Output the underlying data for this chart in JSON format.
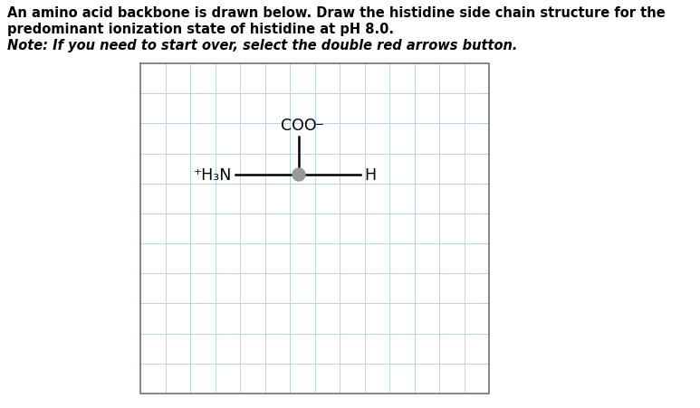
{
  "fig_width": 7.73,
  "fig_height": 4.51,
  "bg_color": "#ffffff",
  "title_line1": "An amino acid backbone is drawn below. Draw the histidine side chain structure for the",
  "title_line2": "predominant ionization state of histidine at pH 8.0.",
  "title_line3": "Note: If you need to start over, select the double red arrows button.",
  "grid_color": "#b8d4e8",
  "grid_cols": 14,
  "grid_rows": 11,
  "bond_color": "#000000",
  "node_color": "#999999",
  "text_color": "#000000",
  "font_size_main": 10.5,
  "font_size_chem": 12.5,
  "font_size_super": 8.5
}
